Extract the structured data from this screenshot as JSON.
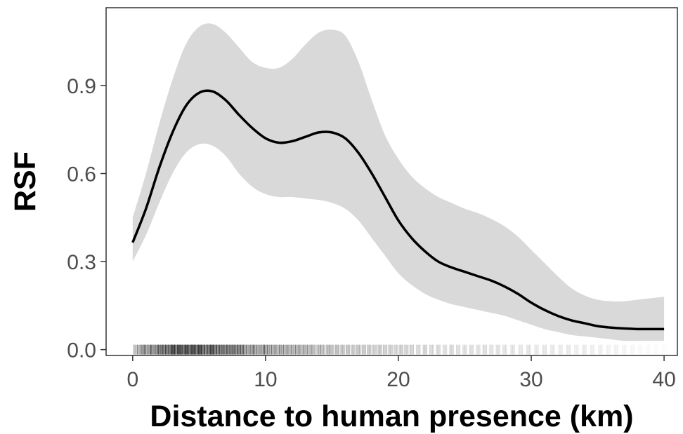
{
  "chart_data": {
    "type": "line",
    "xlabel": "Distance to human presence (km)",
    "ylabel": "RSF",
    "xlim": [
      -2,
      41
    ],
    "ylim": [
      -0.02,
      1.165
    ],
    "xticks": [
      0,
      10,
      20,
      30,
      40
    ],
    "yticks": [
      0.0,
      0.3,
      0.6,
      0.9
    ],
    "xtick_labels": [
      "0",
      "10",
      "20",
      "30",
      "40"
    ],
    "ytick_labels": [
      "0.0",
      "0.3",
      "0.6",
      "0.9"
    ],
    "grid": false,
    "series": [
      {
        "x": [
          0,
          1,
          2,
          3,
          4,
          5,
          6,
          7,
          8,
          9,
          10,
          11,
          12,
          13,
          14,
          15,
          16,
          17,
          18,
          19,
          20,
          21,
          22,
          23,
          24,
          25,
          26,
          27,
          28,
          29,
          30,
          31,
          32,
          33,
          34,
          35,
          36,
          37,
          38,
          39,
          40
        ],
        "y": [
          0.365,
          0.48,
          0.62,
          0.74,
          0.83,
          0.875,
          0.88,
          0.85,
          0.8,
          0.755,
          0.72,
          0.705,
          0.71,
          0.725,
          0.74,
          0.74,
          0.72,
          0.67,
          0.6,
          0.52,
          0.44,
          0.38,
          0.335,
          0.3,
          0.28,
          0.265,
          0.25,
          0.235,
          0.215,
          0.19,
          0.16,
          0.135,
          0.115,
          0.1,
          0.09,
          0.08,
          0.075,
          0.072,
          0.07,
          0.07,
          0.07
        ],
        "lower": [
          0.3,
          0.39,
          0.5,
          0.6,
          0.67,
          0.7,
          0.695,
          0.66,
          0.6,
          0.555,
          0.53,
          0.52,
          0.52,
          0.515,
          0.51,
          0.5,
          0.48,
          0.44,
          0.38,
          0.32,
          0.26,
          0.22,
          0.19,
          0.17,
          0.155,
          0.145,
          0.135,
          0.125,
          0.115,
          0.1,
          0.085,
          0.07,
          0.06,
          0.05,
          0.045,
          0.04,
          0.035,
          0.03,
          0.03,
          0.03,
          0.03
        ],
        "upper": [
          0.45,
          0.6,
          0.77,
          0.92,
          1.04,
          1.1,
          1.11,
          1.08,
          1.03,
          0.98,
          0.96,
          0.96,
          0.99,
          1.04,
          1.08,
          1.09,
          1.07,
          0.98,
          0.85,
          0.73,
          0.65,
          0.59,
          0.55,
          0.52,
          0.5,
          0.48,
          0.465,
          0.445,
          0.42,
          0.385,
          0.34,
          0.295,
          0.25,
          0.21,
          0.185,
          0.17,
          0.165,
          0.165,
          0.17,
          0.175,
          0.18
        ]
      }
    ],
    "rug": {
      "x": [
        0.2,
        0.5,
        0.8,
        1.0,
        1.3,
        1.5,
        1.8,
        2.0,
        2.2,
        2.4,
        2.6,
        2.8,
        3.0,
        3.1,
        3.3,
        3.5,
        3.6,
        3.8,
        4.0,
        4.1,
        4.3,
        4.5,
        4.6,
        4.8,
        5.0,
        5.1,
        5.3,
        5.5,
        5.7,
        5.9,
        6.0,
        6.2,
        6.4,
        6.6,
        6.8,
        7.0,
        7.2,
        7.4,
        7.6,
        7.8,
        8.0,
        8.2,
        8.4,
        8.7,
        9.0,
        9.2,
        9.5,
        9.8,
        10.0,
        10.3,
        10.6,
        10.9,
        11.2,
        11.5,
        11.8,
        12.1,
        12.4,
        12.7,
        13.0,
        13.3,
        13.6,
        14.0,
        14.3,
        14.7,
        15.0,
        15.4,
        15.8,
        16.2,
        16.6,
        17.0,
        17.4,
        17.8,
        18.2,
        18.6,
        19.0,
        19.4,
        19.8,
        20.2,
        20.6,
        21.0,
        21.5,
        22.0,
        22.5,
        23.0,
        23.5,
        24.0,
        24.5,
        25.0,
        25.5,
        26.0,
        26.5,
        27.0,
        27.5,
        28.0,
        28.6,
        29.2,
        29.8,
        30.4,
        31.0,
        31.6,
        32.2,
        32.8,
        33.4,
        34.0,
        34.6,
        35.2,
        35.8,
        36.4,
        37.0,
        37.6,
        38.2,
        38.8,
        39.4,
        40.0
      ],
      "opacity": [
        0.55,
        0.7,
        0.85,
        0.75,
        0.9,
        0.8,
        0.95,
        0.85,
        0.9,
        0.95,
        0.9,
        0.95,
        1.0,
        0.95,
        1.0,
        0.95,
        1.0,
        0.95,
        1.0,
        0.95,
        1.0,
        0.95,
        1.0,
        0.95,
        1.0,
        0.95,
        1.0,
        0.95,
        0.95,
        0.9,
        0.95,
        0.9,
        0.95,
        0.9,
        0.9,
        0.85,
        0.9,
        0.85,
        0.9,
        0.85,
        0.85,
        0.8,
        0.85,
        0.8,
        0.8,
        0.75,
        0.8,
        0.75,
        0.8,
        0.75,
        0.75,
        0.7,
        0.75,
        0.7,
        0.7,
        0.65,
        0.7,
        0.65,
        0.65,
        0.6,
        0.65,
        0.6,
        0.6,
        0.6,
        0.55,
        0.6,
        0.55,
        0.55,
        0.5,
        0.55,
        0.5,
        0.5,
        0.45,
        0.5,
        0.45,
        0.45,
        0.4,
        0.45,
        0.4,
        0.4,
        0.35,
        0.4,
        0.35,
        0.35,
        0.3,
        0.35,
        0.3,
        0.3,
        0.3,
        0.28,
        0.3,
        0.25,
        0.28,
        0.25,
        0.25,
        0.22,
        0.25,
        0.2,
        0.22,
        0.2,
        0.18,
        0.2,
        0.15,
        0.18,
        0.15,
        0.15,
        0.12,
        0.12,
        0.1,
        0.08,
        0.06,
        0.05,
        0.04,
        0.03
      ]
    },
    "colors": {
      "line": "#000000",
      "ribbon": "#d9d9d9",
      "rug": "#000000",
      "panel_border": "#333333",
      "tick_text": "#4d4d4d"
    }
  }
}
